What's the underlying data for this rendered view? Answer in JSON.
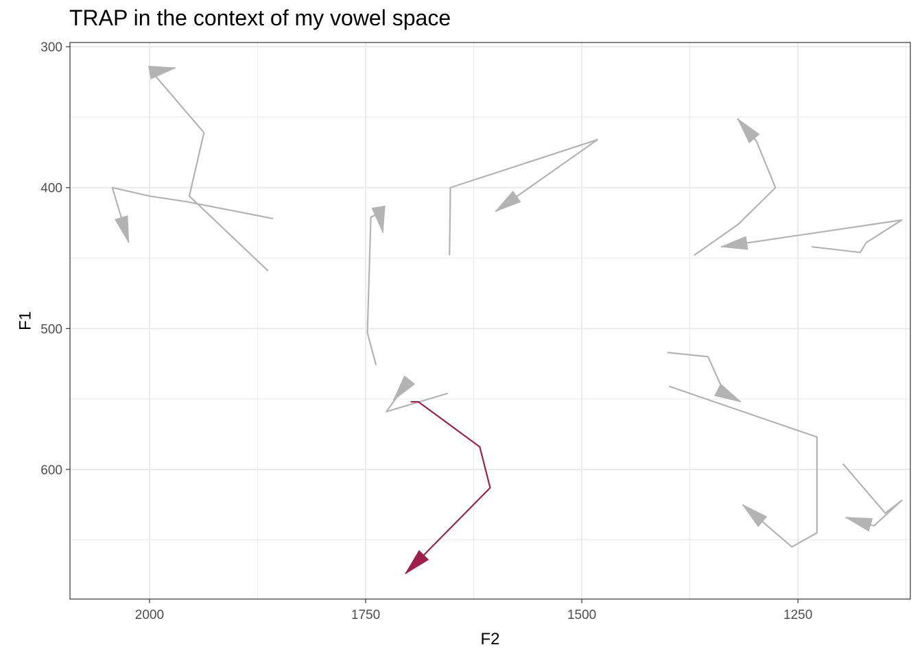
{
  "chart_data": {
    "type": "line",
    "title": "TRAP in the context of my vowel space",
    "xlabel": "F2",
    "ylabel": "F1",
    "x_reversed": true,
    "y_reversed": true,
    "xlim": [
      2092,
      1120
    ],
    "ylim": [
      297,
      692
    ],
    "x_ticks": [
      2000,
      1750,
      1500,
      1250
    ],
    "y_ticks": [
      300,
      400,
      500,
      600
    ],
    "grid": true,
    "legend": "none",
    "colors": {
      "highlight": "#9e1f4e",
      "other": "#b3b3b3"
    },
    "series": [
      {
        "highlight": false,
        "points": [
          [
            1863,
            459
          ],
          [
            1954,
            406
          ],
          [
            1937,
            361
          ],
          [
            1997,
            318
          ],
          [
            1970,
            315
          ]
        ]
      },
      {
        "highlight": false,
        "points": [
          [
            1857,
            422
          ],
          [
            1957,
            410
          ],
          [
            2000,
            406
          ],
          [
            2043,
            400
          ],
          [
            2024,
            439
          ]
        ]
      },
      {
        "highlight": false,
        "points": [
          [
            1738,
            526
          ],
          [
            1748,
            503
          ],
          [
            1744,
            421
          ],
          [
            1734,
            418
          ],
          [
            1730,
            432
          ]
        ]
      },
      {
        "highlight": false,
        "points": [
          [
            1653,
            448
          ],
          [
            1652,
            400
          ],
          [
            1482,
            366
          ],
          [
            1600,
            417
          ]
        ]
      },
      {
        "highlight": false,
        "points": [
          [
            1370,
            448
          ],
          [
            1319,
            426
          ],
          [
            1276,
            400
          ],
          [
            1298,
            367
          ],
          [
            1320,
            351
          ]
        ]
      },
      {
        "highlight": false,
        "points": [
          [
            1234,
            442
          ],
          [
            1178,
            446
          ],
          [
            1171,
            439
          ],
          [
            1130,
            423
          ],
          [
            1339,
            442
          ]
        ]
      },
      {
        "highlight": false,
        "points": [
          [
            1401,
            517
          ],
          [
            1354,
            520
          ],
          [
            1335,
            546
          ],
          [
            1316,
            552
          ]
        ]
      },
      {
        "highlight": false,
        "points": [
          [
            1399,
            541
          ],
          [
            1228,
            577
          ],
          [
            1228,
            645
          ],
          [
            1257,
            655
          ],
          [
            1314,
            625
          ]
        ]
      },
      {
        "highlight": false,
        "points": [
          [
            1198,
            596
          ],
          [
            1149,
            631
          ],
          [
            1130,
            622
          ],
          [
            1162,
            640
          ],
          [
            1195,
            634
          ]
        ]
      },
      {
        "highlight": false,
        "points": [
          [
            1655,
            546
          ],
          [
            1726,
            559
          ],
          [
            1705,
            541
          ],
          [
            1718,
            551
          ]
        ]
      },
      {
        "highlight": true,
        "points": [
          [
            1698,
            552
          ],
          [
            1689,
            552
          ],
          [
            1618,
            584
          ],
          [
            1606,
            613
          ],
          [
            1704,
            674
          ]
        ]
      }
    ]
  }
}
